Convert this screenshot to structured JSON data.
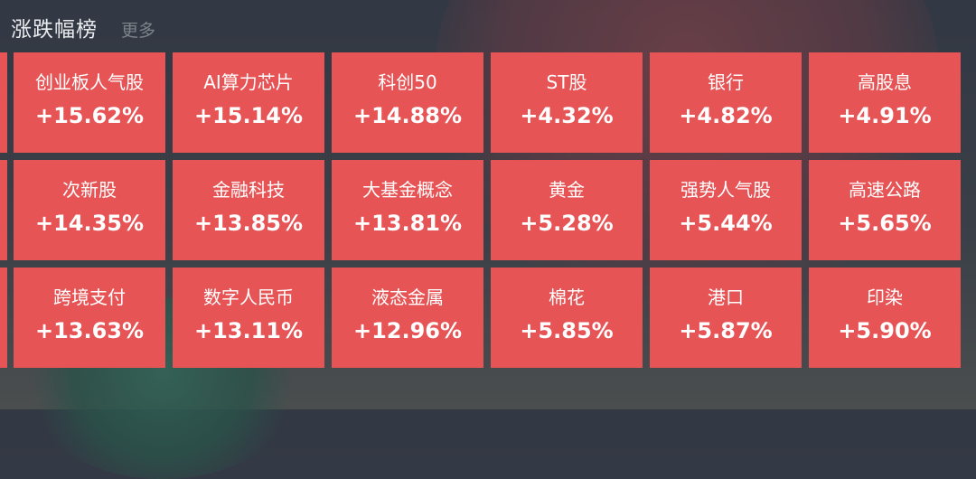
{
  "header": {
    "title": "涨跌幅榜",
    "more": "更多"
  },
  "colors": {
    "tile": "#e65456",
    "background": "#353b45",
    "title": "#e9ebee",
    "more": "#7d828a"
  },
  "rows": [
    [
      {
        "name": "创业板人气股",
        "pct": "+15.62%"
      },
      {
        "name": "AI算力芯片",
        "pct": "+15.14%"
      },
      {
        "name": "科创50",
        "pct": "+14.88%"
      },
      {
        "name": "ST股",
        "pct": "+4.32%"
      },
      {
        "name": "银行",
        "pct": "+4.82%"
      },
      {
        "name": "高股息",
        "pct": "+4.91%"
      }
    ],
    [
      {
        "name": "次新股",
        "pct": "+14.35%"
      },
      {
        "name": "金融科技",
        "pct": "+13.85%"
      },
      {
        "name": "大基金概念",
        "pct": "+13.81%"
      },
      {
        "name": "黄金",
        "pct": "+5.28%"
      },
      {
        "name": "强势人气股",
        "pct": "+5.44%"
      },
      {
        "name": "高速公路",
        "pct": "+5.65%"
      }
    ],
    [
      {
        "name": "跨境支付",
        "pct": "+13.63%"
      },
      {
        "name": "数字人民币",
        "pct": "+13.11%"
      },
      {
        "name": "液态金属",
        "pct": "+12.96%"
      },
      {
        "name": "棉花",
        "pct": "+5.85%"
      },
      {
        "name": "港口",
        "pct": "+5.87%"
      },
      {
        "name": "印染",
        "pct": "+5.90%"
      }
    ]
  ]
}
